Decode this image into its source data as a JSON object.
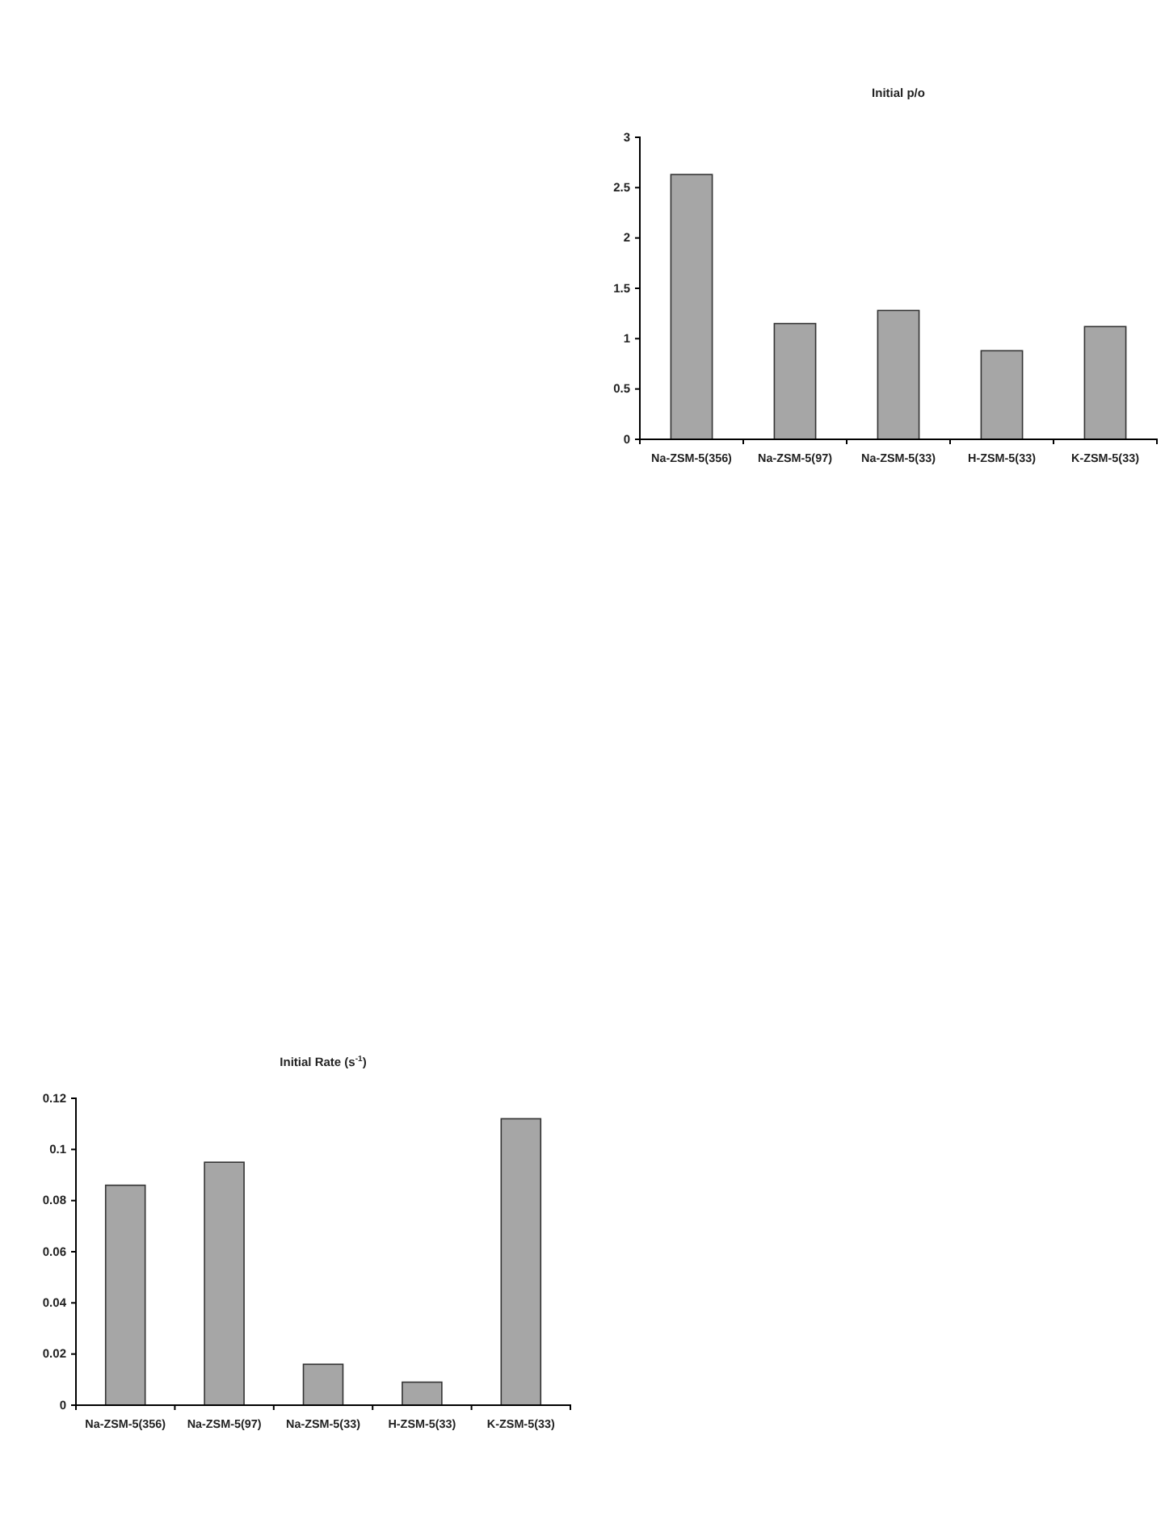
{
  "chart_data": [
    {
      "type": "bar",
      "title": "Initial p/o",
      "categories": [
        "Na-ZSM-5(356)",
        "Na-ZSM-5(97)",
        "Na-ZSM-5(33)",
        "H-ZSM-5(33)",
        "K-ZSM-5(33)"
      ],
      "values": [
        2.63,
        1.15,
        1.28,
        0.88,
        1.12
      ],
      "color": "#a6a6a6",
      "ylim": [
        0,
        3
      ],
      "yticks": [
        0,
        0.5,
        1,
        1.5,
        2,
        2.5,
        3
      ]
    },
    {
      "type": "bar",
      "title": "Initial Rate (s$^{-1}$)",
      "categories": [
        "Na-ZSM-5(356)",
        "Na-ZSM-5(97)",
        "Na-ZSM-5(33)",
        "H-ZSM-5(33)",
        "K-ZSM-5(33)"
      ],
      "values": [
        0.086,
        0.095,
        0.016,
        0.009,
        0.112
      ],
      "color": "#a6a6a6",
      "ylim": [
        0,
        0.12
      ],
      "yticks": [
        0,
        0.02,
        0.04,
        0.06,
        0.08,
        0.1,
        0.12
      ]
    }
  ]
}
